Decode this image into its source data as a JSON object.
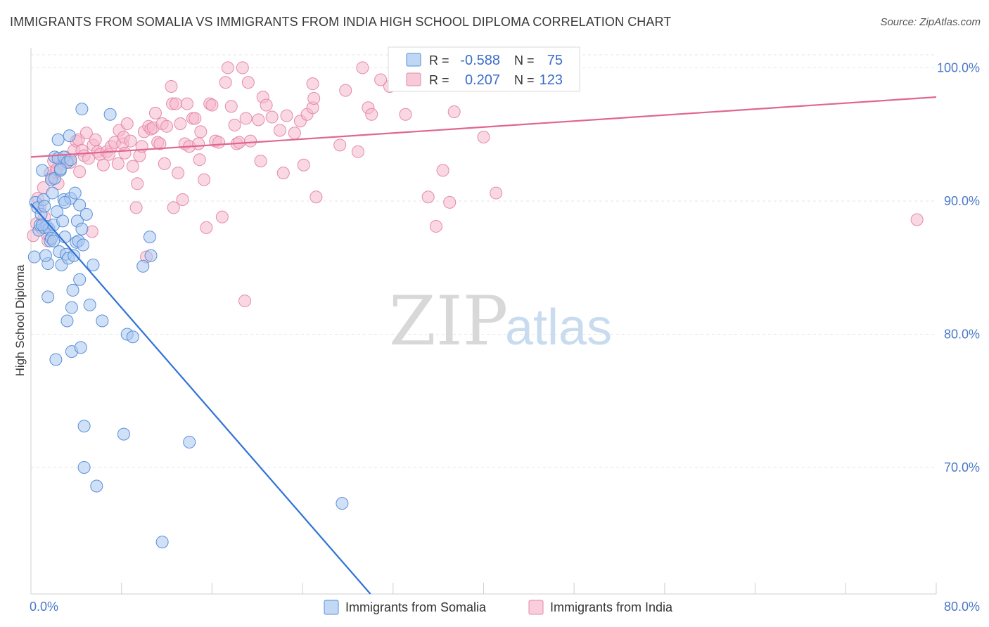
{
  "title": "IMMIGRANTS FROM SOMALIA VS IMMIGRANTS FROM INDIA HIGH SCHOOL DIPLOMA CORRELATION CHART",
  "source": "Source: ZipAtlas.com",
  "watermark": {
    "zip": "ZIP",
    "atlas": "atlas"
  },
  "colors": {
    "somalia_fill": "#a9c8f0",
    "somalia_stroke": "#5a8fd8",
    "somalia_line": "#2f72d6",
    "india_fill": "#f6b8cc",
    "india_stroke": "#e58aa8",
    "india_line": "#e0668f",
    "grid": "#e6e6e6",
    "axis_label": "#4a78c8"
  },
  "legend": {
    "rows": [
      {
        "r_label": "R =",
        "r_value": "-0.588",
        "n_label": "N =",
        "n_value": "75"
      },
      {
        "r_label": "R =",
        "r_value": "0.207",
        "n_label": "N =",
        "n_value": "123"
      }
    ]
  },
  "chart_data": {
    "type": "scatter",
    "title": "IMMIGRANTS FROM SOMALIA VS IMMIGRANTS FROM INDIA HIGH SCHOOL DIPLOMA CORRELATION CHART",
    "xlabel": "",
    "ylabel": "High School Diploma",
    "xlim": [
      0,
      80
    ],
    "ylim": [
      60.5,
      101.5
    ],
    "x_tick_labels": {
      "left": "0.0%",
      "right": "80.0%"
    },
    "y_ticks": [
      {
        "value": 100,
        "label": "100.0%"
      },
      {
        "value": 90,
        "label": "90.0%"
      },
      {
        "value": 80,
        "label": "80.0%"
      },
      {
        "value": 70,
        "label": "70.0%"
      }
    ],
    "legend_position": "bottom-center",
    "series": [
      {
        "name": "Immigrants from Somalia",
        "r": -0.588,
        "n": 75,
        "trend": {
          "x0": 0,
          "y0": 89.8,
          "x1": 30,
          "y1": 60.5
        },
        "points": [
          [
            0.3,
            85.8
          ],
          [
            0.4,
            89.9
          ],
          [
            0.6,
            89.5
          ],
          [
            0.7,
            87.8
          ],
          [
            0.8,
            88.2
          ],
          [
            0.9,
            89.0
          ],
          [
            1.0,
            92.3
          ],
          [
            1.1,
            90.1
          ],
          [
            1.2,
            88.0
          ],
          [
            1.2,
            89.6
          ],
          [
            1.4,
            88.1
          ],
          [
            1.5,
            82.8
          ],
          [
            1.5,
            85.3
          ],
          [
            1.6,
            87.9
          ],
          [
            1.7,
            87.0
          ],
          [
            1.8,
            87.2
          ],
          [
            1.8,
            91.6
          ],
          [
            1.9,
            90.6
          ],
          [
            2.0,
            88.2
          ],
          [
            2.0,
            87.0
          ],
          [
            2.1,
            93.3
          ],
          [
            2.1,
            91.7
          ],
          [
            2.2,
            78.1
          ],
          [
            2.3,
            89.2
          ],
          [
            2.4,
            93.2
          ],
          [
            2.4,
            94.6
          ],
          [
            2.5,
            86.2
          ],
          [
            2.6,
            92.3
          ],
          [
            2.7,
            85.2
          ],
          [
            2.8,
            88.5
          ],
          [
            2.9,
            90.1
          ],
          [
            2.9,
            93.3
          ],
          [
            3.0,
            87.3
          ],
          [
            3.1,
            86.0
          ],
          [
            3.2,
            92.9
          ],
          [
            3.2,
            81.0
          ],
          [
            3.3,
            85.7
          ],
          [
            3.4,
            94.9
          ],
          [
            3.5,
            93.1
          ],
          [
            3.5,
            90.2
          ],
          [
            3.6,
            78.7
          ],
          [
            3.6,
            82.0
          ],
          [
            3.7,
            83.3
          ],
          [
            3.8,
            85.9
          ],
          [
            3.9,
            90.6
          ],
          [
            4.0,
            86.9
          ],
          [
            4.1,
            88.5
          ],
          [
            4.2,
            87.0
          ],
          [
            4.3,
            89.7
          ],
          [
            4.3,
            84.1
          ],
          [
            4.4,
            79.0
          ],
          [
            4.5,
            87.9
          ],
          [
            4.6,
            86.7
          ],
          [
            4.5,
            96.9
          ],
          [
            4.7,
            73.1
          ],
          [
            4.7,
            70.0
          ],
          [
            4.9,
            89.0
          ],
          [
            5.2,
            82.2
          ],
          [
            5.5,
            85.2
          ],
          [
            5.8,
            68.6
          ],
          [
            6.3,
            81.0
          ],
          [
            7.0,
            96.5
          ],
          [
            8.2,
            72.5
          ],
          [
            8.5,
            80.0
          ],
          [
            9.0,
            79.8
          ],
          [
            9.9,
            85.1
          ],
          [
            10.6,
            85.9
          ],
          [
            10.5,
            87.3
          ],
          [
            11.6,
            64.4
          ],
          [
            14.0,
            71.9
          ],
          [
            27.5,
            67.3
          ],
          [
            1.3,
            85.9
          ],
          [
            2.6,
            92.4
          ],
          [
            3.0,
            89.9
          ],
          [
            1.0,
            88.2
          ]
        ]
      },
      {
        "name": "Immigrants from India",
        "r": 0.207,
        "n": 123,
        "trend": {
          "x0": 0,
          "y0": 93.3,
          "x1": 80,
          "y1": 97.8
        },
        "points": [
          [
            0.2,
            87.4
          ],
          [
            0.5,
            88.3
          ],
          [
            0.6,
            90.2
          ],
          [
            0.8,
            89.6
          ],
          [
            0.9,
            88.0
          ],
          [
            1.1,
            91.0
          ],
          [
            1.2,
            88.8
          ],
          [
            1.4,
            87.5
          ],
          [
            1.5,
            87.0
          ],
          [
            1.7,
            92.1
          ],
          [
            1.9,
            91.7
          ],
          [
            2.0,
            93.0
          ],
          [
            2.2,
            92.2
          ],
          [
            2.3,
            92.4
          ],
          [
            2.4,
            91.3
          ],
          [
            2.6,
            93.1
          ],
          [
            2.8,
            92.8
          ],
          [
            3.0,
            93.3
          ],
          [
            3.3,
            93.0
          ],
          [
            3.5,
            92.9
          ],
          [
            3.8,
            93.8
          ],
          [
            4.0,
            94.5
          ],
          [
            4.2,
            94.6
          ],
          [
            4.3,
            92.2
          ],
          [
            4.5,
            93.8
          ],
          [
            4.7,
            93.4
          ],
          [
            4.9,
            95.1
          ],
          [
            5.1,
            93.2
          ],
          [
            5.4,
            87.7
          ],
          [
            5.5,
            94.2
          ],
          [
            5.7,
            94.6
          ],
          [
            5.9,
            93.7
          ],
          [
            6.1,
            93.5
          ],
          [
            6.4,
            92.7
          ],
          [
            6.7,
            93.7
          ],
          [
            6.9,
            93.5
          ],
          [
            7.1,
            94.1
          ],
          [
            7.4,
            94.4
          ],
          [
            7.7,
            92.8
          ],
          [
            7.8,
            95.3
          ],
          [
            8.1,
            94.3
          ],
          [
            8.2,
            94.8
          ],
          [
            8.3,
            93.6
          ],
          [
            8.5,
            95.8
          ],
          [
            8.8,
            94.5
          ],
          [
            9.0,
            92.6
          ],
          [
            9.3,
            89.5
          ],
          [
            9.4,
            91.3
          ],
          [
            9.6,
            93.4
          ],
          [
            9.8,
            94.1
          ],
          [
            10.0,
            95.2
          ],
          [
            10.2,
            85.8
          ],
          [
            10.4,
            95.6
          ],
          [
            10.6,
            95.4
          ],
          [
            10.8,
            95.5
          ],
          [
            11.0,
            96.6
          ],
          [
            11.2,
            94.4
          ],
          [
            11.4,
            94.3
          ],
          [
            11.6,
            95.8
          ],
          [
            11.8,
            92.8
          ],
          [
            12.0,
            95.6
          ],
          [
            12.4,
            98.6
          ],
          [
            12.5,
            97.3
          ],
          [
            12.6,
            89.5
          ],
          [
            12.8,
            97.3
          ],
          [
            13.0,
            92.1
          ],
          [
            13.2,
            95.8
          ],
          [
            13.4,
            90.1
          ],
          [
            13.6,
            94.3
          ],
          [
            13.8,
            97.3
          ],
          [
            14.0,
            94.1
          ],
          [
            14.3,
            96.2
          ],
          [
            14.5,
            96.2
          ],
          [
            14.8,
            94.3
          ],
          [
            15.0,
            95.2
          ],
          [
            15.3,
            91.6
          ],
          [
            15.5,
            88.0
          ],
          [
            15.8,
            97.3
          ],
          [
            16.0,
            97.2
          ],
          [
            16.3,
            94.5
          ],
          [
            16.6,
            94.4
          ],
          [
            16.9,
            88.8
          ],
          [
            17.2,
            98.9
          ],
          [
            17.4,
            100.0
          ],
          [
            17.7,
            97.1
          ],
          [
            18.0,
            95.7
          ],
          [
            18.2,
            94.3
          ],
          [
            18.4,
            94.4
          ],
          [
            18.7,
            100.0
          ],
          [
            18.9,
            82.5
          ],
          [
            19.2,
            98.9
          ],
          [
            19.4,
            94.5
          ],
          [
            20.1,
            96.1
          ],
          [
            20.3,
            93.0
          ],
          [
            20.5,
            97.8
          ],
          [
            20.8,
            97.2
          ],
          [
            21.3,
            96.3
          ],
          [
            22.0,
            95.3
          ],
          [
            22.3,
            92.1
          ],
          [
            22.6,
            96.4
          ],
          [
            23.3,
            95.1
          ],
          [
            23.8,
            96.0
          ],
          [
            24.1,
            92.7
          ],
          [
            24.4,
            96.5
          ],
          [
            24.9,
            97.0
          ],
          [
            25.0,
            97.7
          ],
          [
            24.9,
            98.8
          ],
          [
            27.3,
            94.2
          ],
          [
            27.8,
            98.3
          ],
          [
            28.9,
            93.7
          ],
          [
            29.3,
            100.0
          ],
          [
            29.8,
            97.0
          ],
          [
            30.1,
            96.5
          ],
          [
            30.9,
            99.1
          ],
          [
            31.7,
            98.6
          ],
          [
            33.1,
            96.5
          ],
          [
            35.1,
            90.3
          ],
          [
            35.8,
            88.1
          ],
          [
            36.4,
            92.3
          ],
          [
            37.0,
            89.9
          ],
          [
            37.4,
            96.7
          ],
          [
            40.0,
            94.8
          ],
          [
            41.1,
            90.6
          ],
          [
            78.3,
            88.6
          ],
          [
            25.2,
            90.3
          ],
          [
            19.0,
            96.2
          ],
          [
            14.9,
            93.1
          ]
        ]
      }
    ]
  },
  "bottom_legend": [
    {
      "label": "Immigrants from Somalia"
    },
    {
      "label": "Immigrants from India"
    }
  ]
}
